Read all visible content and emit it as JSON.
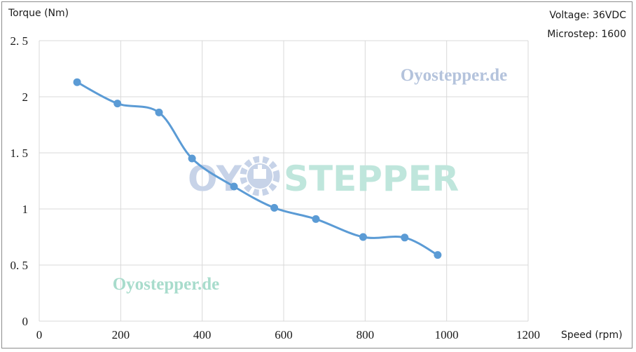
{
  "header": {
    "voltage": "Voltage: 36VDC",
    "microstep": "Microstep: 1600"
  },
  "watermarks": {
    "top_text": "Oyostepper.de",
    "bottom_text": "Oyostepper.de",
    "logo_left": "OY",
    "logo_right": "STEPPER"
  },
  "colors": {
    "series": "#5b9bd5",
    "grid": "#d9d9d9",
    "wm_top": "#b4c3dc",
    "wm_bottom": "#a8dccc",
    "wm_logo_left": "#c7d3e8",
    "wm_logo_right": "#bfe6dc"
  },
  "chart_data": {
    "type": "line",
    "title": "",
    "ylabel": "Torque (Nm)",
    "xlabel": "Speed (rpm)",
    "xlim": [
      0,
      1200
    ],
    "ylim": [
      0,
      2.5
    ],
    "x_ticks": [
      0,
      200,
      400,
      600,
      800,
      1000,
      1200
    ],
    "y_ticks": [
      0,
      0.5,
      1,
      1.5,
      2,
      2.5
    ],
    "y_tick_labels": [
      "0",
      "0. 5",
      "1",
      "1. 5",
      "2",
      "2. 5"
    ],
    "grid": true,
    "legend": false,
    "smooth": true,
    "series": [
      {
        "x": [
          93,
          192,
          294,
          375,
          478,
          577,
          679,
          795,
          897,
          978
        ],
        "y": [
          2.13,
          1.94,
          1.86,
          1.45,
          1.2,
          1.01,
          0.91,
          0.75,
          0.745,
          0.59
        ]
      }
    ]
  }
}
